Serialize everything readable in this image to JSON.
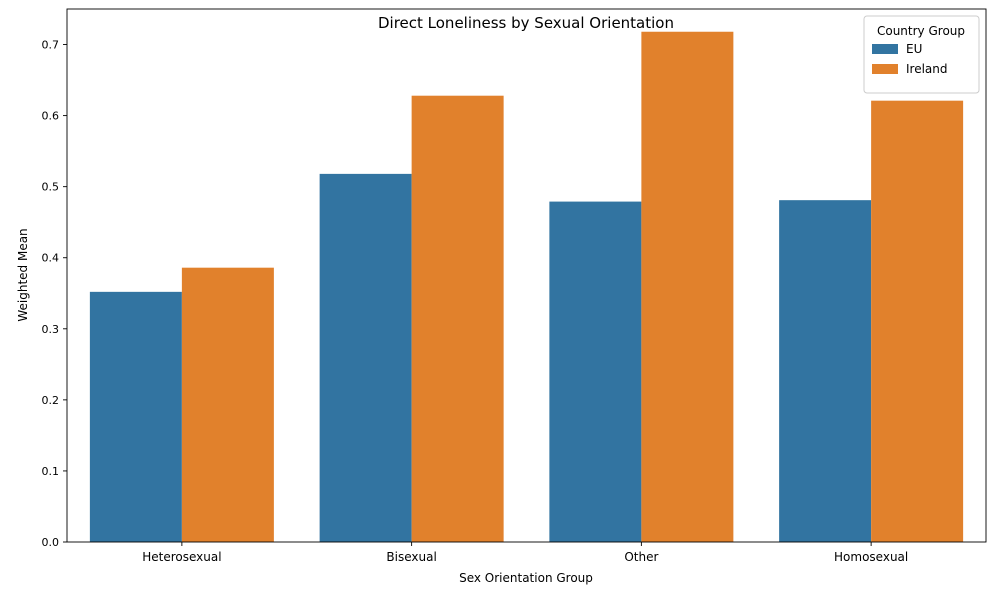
{
  "chart_data": {
    "type": "bar",
    "title": "Direct Loneliness by Sexual Orientation",
    "xlabel": "Sex Orientation Group",
    "ylabel": "Weighted Mean",
    "categories": [
      "Heterosexual",
      "Bisexual",
      "Other",
      "Homosexual"
    ],
    "series": [
      {
        "name": "EU",
        "color": "#3274a1",
        "values": [
          0.352,
          0.518,
          0.479,
          0.481
        ]
      },
      {
        "name": "Ireland",
        "color": "#e1812c",
        "values": [
          0.386,
          0.628,
          0.718,
          0.621
        ]
      }
    ],
    "ylim": [
      0,
      0.75
    ],
    "yticks": [
      0.0,
      0.1,
      0.2,
      0.3,
      0.4,
      0.5,
      0.6,
      0.7
    ],
    "ytick_labels": [
      "0.0",
      "0.1",
      "0.2",
      "0.3",
      "0.4",
      "0.5",
      "0.6",
      "0.7"
    ],
    "grid": false,
    "legend": {
      "title": "Country Group",
      "placement": "top-right"
    }
  }
}
